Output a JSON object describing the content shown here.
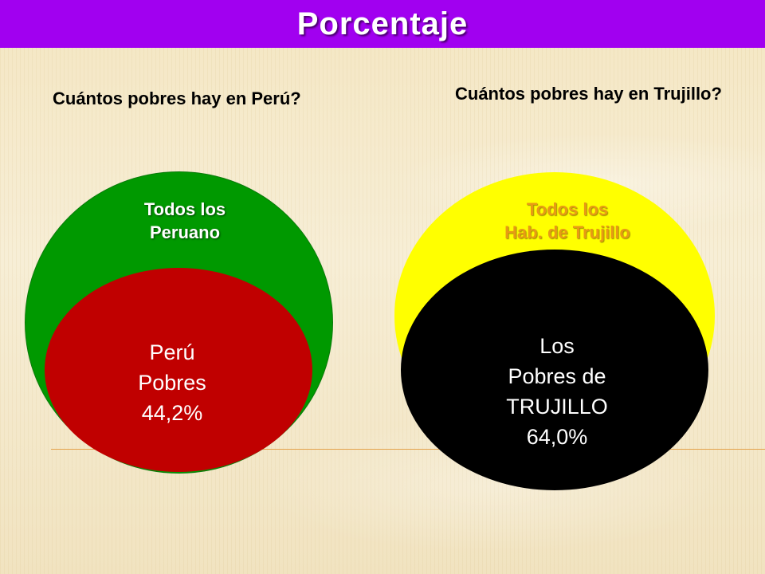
{
  "header": {
    "title": "Porcentaje"
  },
  "peru": {
    "question": "Cuántos pobres hay en Perú?",
    "outer_label_line1": "Todos los",
    "outer_label_line2": "Peruano",
    "inner_line1": "Perú",
    "inner_line2": "Pobres",
    "inner_value": "44,2%",
    "outer_color": "#009900",
    "inner_color": "#c00000"
  },
  "trujillo": {
    "question": "Cuántos pobres hay en Trujillo?",
    "outer_label_line1": "Todos los",
    "outer_label_line2": "Hab. de Trujillo",
    "inner_line1": "Los",
    "inner_line2": "Pobres de",
    "inner_line3": "TRUJILLO",
    "inner_value": "64,0%",
    "outer_color": "#ffff00",
    "inner_color": "#000000"
  },
  "colors": {
    "title_bar": "#a100f0",
    "background": "#f3e9cc"
  }
}
